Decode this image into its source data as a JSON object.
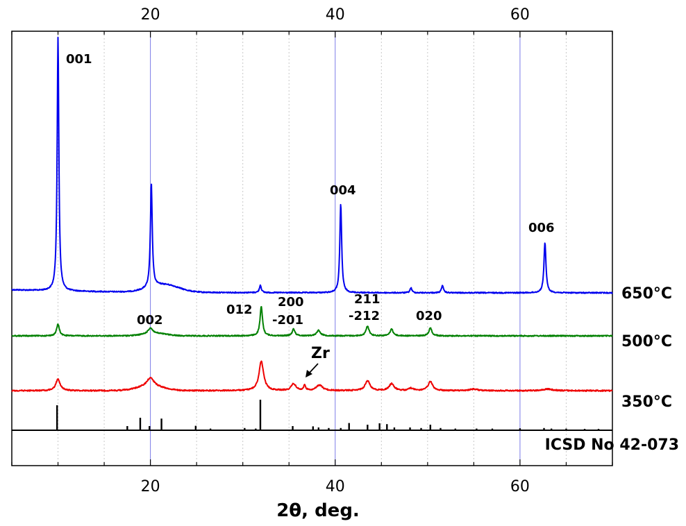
{
  "chart_data": {
    "type": "line",
    "xlabel": "2θ, deg.",
    "ylabel": "",
    "xlim": [
      5,
      70
    ],
    "xticks_labeled": [
      20,
      40,
      60
    ],
    "xticks_minor_step": 5,
    "grid": "vertical",
    "series": [
      {
        "name": "650°C",
        "color": "#0000ee",
        "baseline": 0.0,
        "peaks": [
          {
            "x": 10.0,
            "y": 1.0,
            "w": 0.11
          },
          {
            "x": 20.1,
            "y": 0.41,
            "w": 0.12
          },
          {
            "x": 31.9,
            "y": 0.03,
            "w": 0.12
          },
          {
            "x": 40.6,
            "y": 0.35,
            "w": 0.12
          },
          {
            "x": 48.2,
            "y": 0.02,
            "w": 0.12
          },
          {
            "x": 51.6,
            "y": 0.03,
            "w": 0.12
          },
          {
            "x": 62.7,
            "y": 0.2,
            "w": 0.13
          }
        ],
        "bumps": [
          {
            "x": 21.5,
            "y": 0.03,
            "w": 2.2
          }
        ]
      },
      {
        "name": "500°C",
        "color": "#008000",
        "baseline": 0.0,
        "peaks": [
          {
            "x": 10.0,
            "y": 0.06,
            "w": 0.18
          },
          {
            "x": 20.0,
            "y": 0.03,
            "w": 0.3
          },
          {
            "x": 32.0,
            "y": 0.15,
            "w": 0.16
          },
          {
            "x": 35.5,
            "y": 0.035,
            "w": 0.18
          },
          {
            "x": 38.2,
            "y": 0.028,
            "w": 0.25
          },
          {
            "x": 43.5,
            "y": 0.05,
            "w": 0.2
          },
          {
            "x": 46.1,
            "y": 0.035,
            "w": 0.2
          },
          {
            "x": 50.3,
            "y": 0.04,
            "w": 0.2
          }
        ],
        "bumps": [
          {
            "x": 20.5,
            "y": 0.012,
            "w": 1.8
          }
        ]
      },
      {
        "name": "350°C",
        "color": "#ee0000",
        "baseline": 0.0,
        "peaks": [
          {
            "x": 10.0,
            "y": 0.06,
            "w": 0.28
          },
          {
            "x": 20.0,
            "y": 0.045,
            "w": 0.45
          },
          {
            "x": 32.0,
            "y": 0.15,
            "w": 0.3
          },
          {
            "x": 35.5,
            "y": 0.035,
            "w": 0.3
          },
          {
            "x": 36.7,
            "y": 0.028,
            "w": 0.12
          },
          {
            "x": 38.3,
            "y": 0.028,
            "w": 0.4
          },
          {
            "x": 43.5,
            "y": 0.05,
            "w": 0.32
          },
          {
            "x": 46.1,
            "y": 0.035,
            "w": 0.32
          },
          {
            "x": 48.2,
            "y": 0.012,
            "w": 0.3
          },
          {
            "x": 50.3,
            "y": 0.046,
            "w": 0.3
          },
          {
            "x": 55.0,
            "y": 0.008,
            "w": 0.5
          },
          {
            "x": 63.0,
            "y": 0.008,
            "w": 0.6
          }
        ],
        "bumps": [
          {
            "x": 20.0,
            "y": 0.022,
            "w": 2.0
          }
        ]
      },
      {
        "name": "ICSD No 42-073",
        "color": "#000000",
        "baseline": 0.0,
        "sticks": [
          {
            "x": 9.9,
            "y": 0.09
          },
          {
            "x": 17.5,
            "y": 0.015
          },
          {
            "x": 18.9,
            "y": 0.045
          },
          {
            "x": 19.9,
            "y": 0.015
          },
          {
            "x": 21.2,
            "y": 0.042
          },
          {
            "x": 24.9,
            "y": 0.016
          },
          {
            "x": 26.5,
            "y": 0.006
          },
          {
            "x": 30.2,
            "y": 0.008
          },
          {
            "x": 31.4,
            "y": 0.006
          },
          {
            "x": 31.9,
            "y": 0.11
          },
          {
            "x": 35.4,
            "y": 0.015
          },
          {
            "x": 37.6,
            "y": 0.014
          },
          {
            "x": 38.2,
            "y": 0.01
          },
          {
            "x": 39.3,
            "y": 0.008
          },
          {
            "x": 40.6,
            "y": 0.008
          },
          {
            "x": 41.5,
            "y": 0.026
          },
          {
            "x": 43.5,
            "y": 0.02
          },
          {
            "x": 44.8,
            "y": 0.025
          },
          {
            "x": 45.6,
            "y": 0.022
          },
          {
            "x": 46.4,
            "y": 0.01
          },
          {
            "x": 48.1,
            "y": 0.01
          },
          {
            "x": 49.3,
            "y": 0.008
          },
          {
            "x": 50.3,
            "y": 0.02
          },
          {
            "x": 51.4,
            "y": 0.008
          },
          {
            "x": 53.0,
            "y": 0.006
          },
          {
            "x": 55.3,
            "y": 0.006
          },
          {
            "x": 57.0,
            "y": 0.006
          },
          {
            "x": 60.0,
            "y": 0.007
          },
          {
            "x": 62.6,
            "y": 0.008
          },
          {
            "x": 63.4,
            "y": 0.006
          },
          {
            "x": 65.0,
            "y": 0.006
          },
          {
            "x": 67.0,
            "y": 0.005
          },
          {
            "x": 68.5,
            "y": 0.005
          }
        ]
      }
    ],
    "annotations": [
      {
        "label": "001"
      },
      {
        "label": "002"
      },
      {
        "label": "012"
      },
      {
        "label": "200"
      },
      {
        "label": "-201"
      },
      {
        "label": "004"
      },
      {
        "label": "211"
      },
      {
        "label": "-212"
      },
      {
        "label": "020"
      },
      {
        "label": "006"
      },
      {
        "label": "Zr"
      }
    ],
    "series_labels": [
      "650°C",
      "500°C",
      "350°C",
      "ICSD No 42-073"
    ]
  }
}
